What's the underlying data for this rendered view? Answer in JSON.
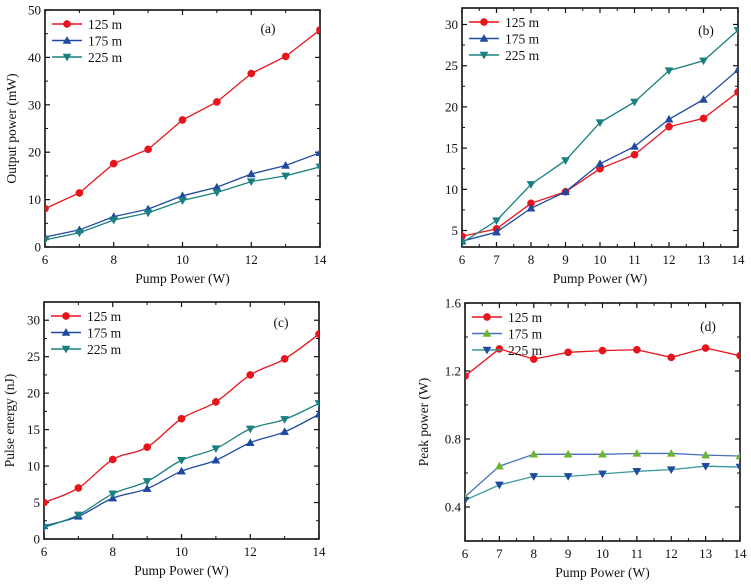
{
  "chart_data": [
    {
      "id": "a",
      "type": "line",
      "panel_label": "(a)",
      "title": "",
      "xlabel": "Pump Power (W)",
      "ylabel": "Output power (mW)",
      "xlim": [
        6,
        14
      ],
      "ylim": [
        0,
        50
      ],
      "xticks": [
        6,
        8,
        10,
        12,
        14
      ],
      "yticks": [
        0,
        10,
        20,
        30,
        40,
        50
      ],
      "x": [
        6,
        7,
        8,
        9,
        10,
        11,
        12,
        13,
        14
      ],
      "grid": false,
      "legend_position": "top-left",
      "series": [
        {
          "name": "125 m",
          "color": "#e8141c",
          "marker": "circle",
          "values": [
            8.1,
            11.4,
            17.6,
            20.6,
            26.8,
            30.6,
            36.6,
            40.2,
            45.8
          ]
        },
        {
          "name": "175 m",
          "color": "#1f4aa0",
          "marker": "triangle-up",
          "values": [
            2.1,
            3.6,
            6.4,
            8.0,
            10.8,
            12.6,
            15.4,
            17.2,
            19.9
          ]
        },
        {
          "name": "225 m",
          "color": "#1a8080",
          "marker": "triangle-down",
          "values": [
            1.5,
            3.0,
            5.7,
            7.2,
            9.8,
            11.5,
            13.8,
            15.0,
            16.9
          ]
        }
      ]
    },
    {
      "id": "b",
      "type": "line",
      "panel_label": "(b)",
      "title": "",
      "xlabel": "Pump Power (W)",
      "ylabel": "",
      "xlim": [
        6,
        14
      ],
      "ylim": [
        3,
        32
      ],
      "xticks": [
        6,
        7,
        8,
        9,
        10,
        11,
        12,
        13,
        14
      ],
      "yticks": [
        5,
        10,
        15,
        20,
        25,
        30
      ],
      "x": [
        6,
        7,
        8,
        9,
        10,
        11,
        12,
        13,
        14
      ],
      "grid": false,
      "legend_position": "top-left",
      "series": [
        {
          "name": "125 m",
          "color": "#e8141c",
          "marker": "circle",
          "values": [
            4.3,
            5.2,
            8.3,
            9.7,
            12.5,
            14.2,
            17.6,
            18.6,
            21.8
          ]
        },
        {
          "name": "175 m",
          "color": "#1f4aa0",
          "marker": "triangle-up",
          "values": [
            3.7,
            4.8,
            7.7,
            9.7,
            13.1,
            15.2,
            18.5,
            20.9,
            24.5
          ]
        },
        {
          "name": "225 m",
          "color": "#1a8080",
          "marker": "triangle-down",
          "values": [
            3.5,
            6.2,
            10.6,
            13.5,
            18.1,
            20.6,
            24.4,
            25.6,
            29.3
          ]
        }
      ]
    },
    {
      "id": "c",
      "type": "line",
      "panel_label": "(c)",
      "title": "",
      "xlabel": "Pump Power (W)",
      "ylabel": "Pulse energy (nJ)",
      "xlim": [
        6,
        14
      ],
      "ylim": [
        0,
        32.5
      ],
      "xticks": [
        6,
        8,
        10,
        12,
        14
      ],
      "yticks": [
        0,
        5,
        10,
        15,
        20,
        25,
        30
      ],
      "x": [
        6,
        7,
        8,
        9,
        10,
        11,
        12,
        13,
        14
      ],
      "grid": false,
      "smooth": true,
      "legend_position": "top-left",
      "series": [
        {
          "name": "125 m",
          "color": "#e8141c",
          "marker": "circle",
          "values": [
            5.0,
            7.0,
            10.9,
            12.6,
            16.5,
            18.8,
            22.5,
            24.7,
            28.1
          ]
        },
        {
          "name": "175 m",
          "color": "#1f4aa0",
          "marker": "triangle-up",
          "values": [
            1.8,
            3.1,
            5.6,
            6.9,
            9.3,
            10.8,
            13.2,
            14.7,
            17.1
          ]
        },
        {
          "name": "225 m",
          "color": "#1a8080",
          "marker": "triangle-down",
          "values": [
            1.6,
            3.3,
            6.2,
            7.9,
            10.8,
            12.4,
            15.1,
            16.4,
            18.6
          ]
        }
      ]
    },
    {
      "id": "d",
      "type": "line",
      "panel_label": "(d)",
      "title": "",
      "xlabel": "Pump Power (W)",
      "ylabel": "Peak power (W)",
      "xlim": [
        6,
        14
      ],
      "ylim": [
        0.2,
        1.6
      ],
      "xticks": [
        6,
        7,
        8,
        9,
        10,
        11,
        12,
        13,
        14
      ],
      "yticks": [
        0.4,
        0.8,
        1.2,
        1.6
      ],
      "ytick_labels": [
        "0.4",
        "0.8",
        "1.2",
        "1.6"
      ],
      "x": [
        6,
        7,
        8,
        9,
        10,
        11,
        12,
        13,
        14
      ],
      "grid": false,
      "legend_position": "top-left",
      "series": [
        {
          "name": "125 m",
          "color": "#e8141c",
          "line_color": "#e8141c",
          "marker": "circle",
          "values": [
            1.17,
            1.33,
            1.27,
            1.31,
            1.32,
            1.325,
            1.28,
            1.335,
            1.29
          ]
        },
        {
          "name": "175 m",
          "color": "#6cb52e",
          "line_color": "#4a6fc0",
          "marker": "triangle-up",
          "values": [
            0.46,
            0.64,
            0.71,
            0.71,
            0.71,
            0.715,
            0.715,
            0.705,
            0.7
          ]
        },
        {
          "name": "225 m",
          "color": "#1f4aa0",
          "line_color": "#3a9a9a",
          "marker": "triangle-down",
          "values": [
            0.44,
            0.53,
            0.58,
            0.58,
            0.595,
            0.61,
            0.62,
            0.64,
            0.635
          ]
        }
      ]
    }
  ]
}
